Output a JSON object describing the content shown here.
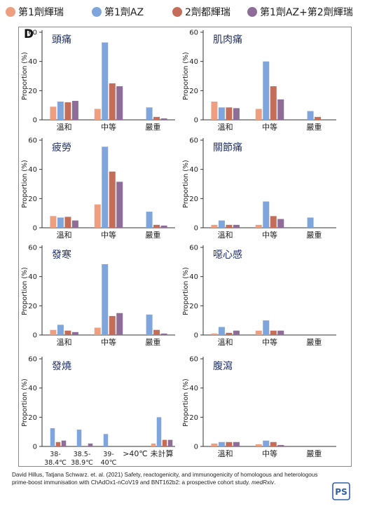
{
  "legend": [
    {
      "label": "第1劑輝瑞",
      "color": "#ee9f80"
    },
    {
      "label": "第1劑AZ",
      "color": "#7fa6dc"
    },
    {
      "label": "2劑都輝瑞",
      "color": "#c46d59"
    },
    {
      "label": "第1劑AZ+第2劑輝瑞",
      "color": "#8e6d98"
    }
  ],
  "panel_letter": "D",
  "citation": {
    "text": "David Hillus, Tatjana Schwarz. et. al. (2021) Safety, reactogenicity, and immunogenicity of homologous and heterologous prime-boost immunisation with ChAdOx1-nCoV19 and BNT162b2: a prospective cohort study.",
    "journal": "medRxiv",
    "end": "."
  },
  "logo_text": "PS",
  "chart_data": [
    {
      "type": "bar",
      "title": "頭痛",
      "ylabel": "Proportion (%)",
      "ylim": [
        0,
        60
      ],
      "yticks": [
        0,
        20,
        40,
        60
      ],
      "categories": [
        "溫和",
        "中等",
        "嚴重"
      ],
      "series": [
        {
          "name": "第1劑輝瑞",
          "values": [
            9,
            7.5,
            0
          ]
        },
        {
          "name": "第1劑AZ",
          "values": [
            12.5,
            53,
            8.5
          ]
        },
        {
          "name": "2劑都輝瑞",
          "values": [
            12,
            25,
            2
          ]
        },
        {
          "name": "第1劑AZ+第2劑輝瑞",
          "values": [
            13,
            23,
            1
          ]
        }
      ]
    },
    {
      "type": "bar",
      "title": "肌肉痛",
      "ylabel": "Proportion (%)",
      "ylim": [
        0,
        60
      ],
      "yticks": [
        0,
        20,
        40,
        60
      ],
      "categories": [
        "溫和",
        "中等",
        "嚴重"
      ],
      "series": [
        {
          "name": "第1劑輝瑞",
          "values": [
            12.5,
            7.5,
            0
          ]
        },
        {
          "name": "第1劑AZ",
          "values": [
            8.5,
            40,
            6
          ]
        },
        {
          "name": "2劑都輝瑞",
          "values": [
            8.5,
            23,
            2
          ]
        },
        {
          "name": "第1劑AZ+第2劑輝瑞",
          "values": [
            8,
            14,
            0
          ]
        }
      ]
    },
    {
      "type": "bar",
      "title": "疲勞",
      "ylabel": "Proportion (%)",
      "ylim": [
        0,
        60
      ],
      "yticks": [
        0,
        20,
        40,
        60
      ],
      "categories": [
        "溫和",
        "中等",
        "嚴重"
      ],
      "series": [
        {
          "name": "第1劑輝瑞",
          "values": [
            8,
            16,
            0
          ]
        },
        {
          "name": "第1劑AZ",
          "values": [
            7,
            55.5,
            11
          ]
        },
        {
          "name": "2劑都輝瑞",
          "values": [
            7.5,
            38.5,
            2
          ]
        },
        {
          "name": "第1劑AZ+第2劑輝瑞",
          "values": [
            5,
            31.5,
            1.5
          ]
        }
      ]
    },
    {
      "type": "bar",
      "title": "關節痛",
      "ylabel": "Proportion (%)",
      "ylim": [
        0,
        60
      ],
      "yticks": [
        0,
        20,
        40,
        60
      ],
      "categories": [
        "溫和",
        "中等",
        "嚴重"
      ],
      "series": [
        {
          "name": "第1劑輝瑞",
          "values": [
            2,
            2,
            0
          ]
        },
        {
          "name": "第1劑AZ",
          "values": [
            5,
            18,
            7
          ]
        },
        {
          "name": "2劑都輝瑞",
          "values": [
            2,
            8,
            0
          ]
        },
        {
          "name": "第1劑AZ+第2劑輝瑞",
          "values": [
            2,
            6,
            0
          ]
        }
      ]
    },
    {
      "type": "bar",
      "title": "發寒",
      "ylabel": "Proportion (%)",
      "ylim": [
        0,
        60
      ],
      "yticks": [
        0,
        20,
        40,
        60
      ],
      "categories": [
        "溫和",
        "中等",
        "嚴重"
      ],
      "series": [
        {
          "name": "第1劑輝瑞",
          "values": [
            3.5,
            5,
            0
          ]
        },
        {
          "name": "第1劑AZ",
          "values": [
            7,
            48.5,
            14
          ]
        },
        {
          "name": "2劑都輝瑞",
          "values": [
            3,
            13,
            3.5
          ]
        },
        {
          "name": "第1劑AZ+第2劑輝瑞",
          "values": [
            2,
            15,
            1
          ]
        }
      ]
    },
    {
      "type": "bar",
      "title": "噁心感",
      "ylabel": "Proportion (%)",
      "ylim": [
        0,
        60
      ],
      "yticks": [
        0,
        20,
        40,
        60
      ],
      "categories": [
        "溫和",
        "中等",
        "嚴重"
      ],
      "series": [
        {
          "name": "第1劑輝瑞",
          "values": [
            1,
            3,
            0
          ]
        },
        {
          "name": "第1劑AZ",
          "values": [
            5.5,
            10,
            0
          ]
        },
        {
          "name": "2劑都輝瑞",
          "values": [
            1.5,
            3,
            0
          ]
        },
        {
          "name": "第1劑AZ+第2劑輝瑞",
          "values": [
            3,
            3,
            0
          ]
        }
      ]
    },
    {
      "type": "bar",
      "title": "發燒",
      "ylabel": "Proportion (%)",
      "ylim": [
        0,
        60
      ],
      "yticks": [
        0,
        20,
        40,
        60
      ],
      "categories": [
        "38-\n38.4℃",
        "38.5-\n38.9℃",
        "39-\n40℃",
        ">40℃",
        "未計算"
      ],
      "series": [
        {
          "name": "第1劑輝瑞",
          "values": [
            0,
            0,
            0,
            0,
            2
          ]
        },
        {
          "name": "第1劑AZ",
          "values": [
            12.5,
            11.5,
            8.5,
            0,
            20
          ]
        },
        {
          "name": "2劑都輝瑞",
          "values": [
            3,
            0,
            0,
            0,
            4.5
          ]
        },
        {
          "name": "第1劑AZ+第2劑輝瑞",
          "values": [
            4,
            2,
            0,
            0,
            4.5
          ]
        }
      ]
    },
    {
      "type": "bar",
      "title": "腹瀉",
      "ylabel": "Proportion (%)",
      "ylim": [
        0,
        60
      ],
      "yticks": [
        0,
        20,
        40,
        60
      ],
      "categories": [
        "溫和",
        "中等",
        "嚴重"
      ],
      "series": [
        {
          "name": "第1劑輝瑞",
          "values": [
            2,
            1.5,
            0
          ]
        },
        {
          "name": "第1劑AZ",
          "values": [
            3,
            4,
            0
          ]
        },
        {
          "name": "2劑都輝瑞",
          "values": [
            3,
            3,
            0
          ]
        },
        {
          "name": "第1劑AZ+第2劑輝瑞",
          "values": [
            3,
            1,
            0
          ]
        }
      ]
    }
  ]
}
